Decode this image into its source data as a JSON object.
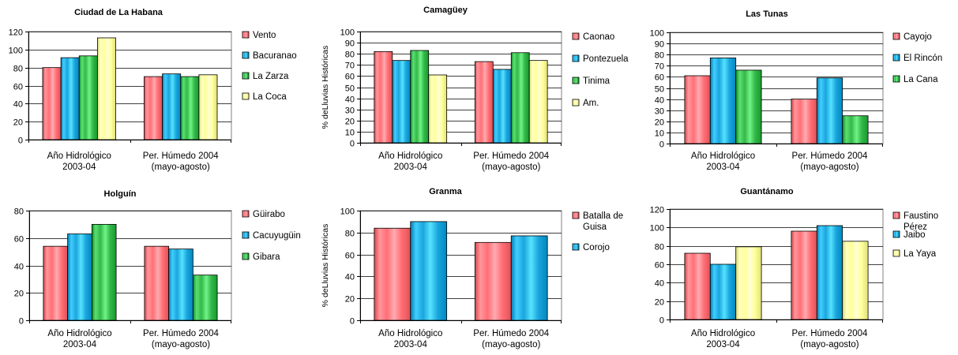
{
  "colors": {
    "red": "#ff6f75",
    "blue": "#1aa6dd",
    "green": "#34b84a",
    "yellow": "#ffff99",
    "axis": "#000000",
    "grid": "#000000"
  },
  "chart_data": [
    {
      "type": "bar",
      "title": "Ciudad de La Habana",
      "ylabel": "",
      "ylim": [
        0,
        120
      ],
      "yticks": [
        0,
        20,
        40,
        60,
        80,
        100,
        120
      ],
      "categories": [
        [
          "Año Hidrológico",
          "2003-04"
        ],
        [
          "Per. Húmedo 2004",
          "(mayo-agosto)"
        ]
      ],
      "series": [
        {
          "name": [
            "Vento"
          ],
          "color": "red",
          "values": [
            80,
            70
          ]
        },
        {
          "name": [
            "Bacuranao"
          ],
          "color": "blue",
          "values": [
            91,
            73
          ]
        },
        {
          "name": [
            "La Zarza"
          ],
          "color": "green",
          "values": [
            93,
            70
          ]
        },
        {
          "name": [
            "La Coca"
          ],
          "color": "yellow",
          "values": [
            113,
            72
          ]
        }
      ],
      "grid": true,
      "legend": "right"
    },
    {
      "type": "bar",
      "title": "Camagüey",
      "ylabel": "% deLluvias Históricas",
      "ylim": [
        0,
        100
      ],
      "yticks": [
        0,
        10,
        20,
        30,
        40,
        50,
        60,
        70,
        80,
        90,
        100
      ],
      "categories": [
        [
          "Año Hidrológico",
          "2003-04"
        ],
        [
          "Per. Húmedo 2004",
          "(mayo-agosto)"
        ]
      ],
      "series": [
        {
          "name": [
            "Caonao"
          ],
          "color": "red",
          "values": [
            82,
            73
          ]
        },
        {
          "name": [
            "Pontezuela"
          ],
          "color": "blue",
          "values": [
            74,
            66
          ]
        },
        {
          "name": [
            "Tinima"
          ],
          "color": "green",
          "values": [
            83,
            81
          ]
        },
        {
          "name": [
            "Am."
          ],
          "color": "yellow",
          "values": [
            61,
            74
          ]
        }
      ],
      "grid": true,
      "legend": "right"
    },
    {
      "type": "bar",
      "title": "Las Tunas",
      "ylabel": "",
      "ylim": [
        0,
        100
      ],
      "yticks": [
        0,
        10,
        20,
        30,
        40,
        50,
        60,
        70,
        80,
        90,
        100
      ],
      "categories": [
        [
          "Año Hidrológico",
          "2003-04"
        ],
        [
          "Per. Húmedo 2004",
          "(mayo-agosto)"
        ]
      ],
      "series": [
        {
          "name": [
            "Cayojo"
          ],
          "color": "red",
          "values": [
            61,
            40
          ]
        },
        {
          "name": [
            "El Rincón"
          ],
          "color": "blue",
          "values": [
            77,
            59
          ]
        },
        {
          "name": [
            "La Cana"
          ],
          "color": "green",
          "values": [
            66,
            25
          ]
        }
      ],
      "grid": true,
      "legend": "right"
    },
    {
      "type": "bar",
      "title": "Holguín",
      "ylabel": "",
      "ylim": [
        0,
        80
      ],
      "yticks": [
        0,
        20,
        40,
        60,
        80
      ],
      "categories": [
        [
          "Año Hidrológico",
          "2003-04"
        ],
        [
          "Per. Húmedo 2004",
          "(mayo-agosto)"
        ]
      ],
      "series": [
        {
          "name": [
            "Güirabo"
          ],
          "color": "red",
          "values": [
            54,
            54
          ]
        },
        {
          "name": [
            "Cacuyugüin"
          ],
          "color": "blue",
          "values": [
            63,
            52
          ]
        },
        {
          "name": [
            "Gibara"
          ],
          "color": "green",
          "values": [
            70,
            33
          ]
        }
      ],
      "grid": true,
      "legend": "right"
    },
    {
      "type": "bar",
      "title": "Granma",
      "ylabel": "% deLluvias Históricas",
      "ylim": [
        0,
        100
      ],
      "yticks": [
        0,
        20,
        40,
        60,
        80,
        100
      ],
      "categories": [
        [
          "Año Hidrológico",
          "2003-04"
        ],
        [
          "Per. Húmedo 2004",
          "(mayo-agosto)"
        ]
      ],
      "series": [
        {
          "name": [
            "Batalla de",
            "Guisa"
          ],
          "color": "red",
          "values": [
            84,
            71
          ]
        },
        {
          "name": [
            "Corojo"
          ],
          "color": "blue",
          "values": [
            90,
            77
          ]
        }
      ],
      "grid": true,
      "legend": "right"
    },
    {
      "type": "bar",
      "title": "Guantánamo",
      "ylabel": "",
      "ylim": [
        0,
        120
      ],
      "yticks": [
        0,
        20,
        40,
        60,
        80,
        100,
        120
      ],
      "categories": [
        [
          "Año Hidrológico",
          "2003-04"
        ],
        [
          "Per. Húmedo 2004",
          "(mayo-agosto)"
        ]
      ],
      "series": [
        {
          "name": [
            "Faustino",
            "Pérez"
          ],
          "color": "red",
          "values": [
            72,
            96
          ]
        },
        {
          "name": [
            "Jaibo"
          ],
          "color": "blue",
          "values": [
            60,
            102
          ]
        },
        {
          "name": [
            "La Yaya"
          ],
          "color": "yellow",
          "values": [
            79,
            85
          ]
        }
      ],
      "grid": true,
      "legend": "right"
    }
  ]
}
